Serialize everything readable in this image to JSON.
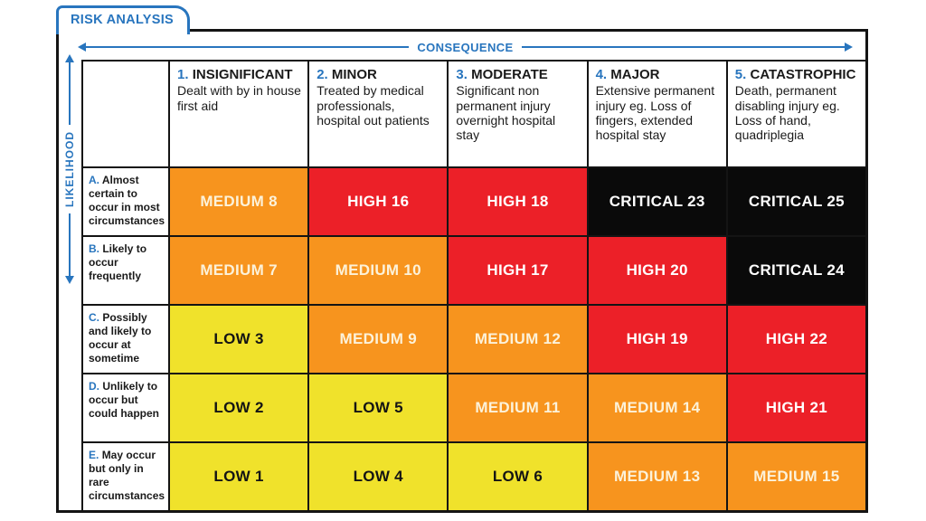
{
  "tab": {
    "label": "RISK ANALYSIS"
  },
  "axes": {
    "horizontal": "CONSEQUENCE",
    "vertical": "LIKELIHOOD"
  },
  "colors": {
    "accent_blue": "#2875BE",
    "low": "#F0E22B",
    "medium": "#F7941E",
    "high": "#EC2028",
    "critical": "#0A0A0A"
  },
  "matrix": {
    "columns": [
      {
        "num": "1.",
        "title": "INSIGNIFICANT",
        "desc": "Dealt with by in house first aid"
      },
      {
        "num": "2.",
        "title": "MINOR",
        "desc": "Treated by medical professionals, hospital out patients"
      },
      {
        "num": "3.",
        "title": "MODERATE",
        "desc": "Significant non permanent injury overnight hospital stay"
      },
      {
        "num": "4.",
        "title": "MAJOR",
        "desc": "Extensive permanent injury eg. Loss of fingers, extended hospital stay"
      },
      {
        "num": "5.",
        "title": "CATASTROPHIC",
        "desc": "Death, permanent disabling injury eg. Loss of hand, quadriplegia"
      }
    ],
    "rows": [
      {
        "letter": "A.",
        "desc": "Almost certain to occur in most circumstances",
        "cells": [
          {
            "label": "MEDIUM 8",
            "level": "medium"
          },
          {
            "label": "HIGH 16",
            "level": "high"
          },
          {
            "label": "HIGH 18",
            "level": "high"
          },
          {
            "label": "CRITICAL 23",
            "level": "critical"
          },
          {
            "label": "CRITICAL 25",
            "level": "critical"
          }
        ]
      },
      {
        "letter": "B.",
        "desc": "Likely to occur frequently",
        "cells": [
          {
            "label": "MEDIUM 7",
            "level": "medium"
          },
          {
            "label": "MEDIUM 10",
            "level": "medium"
          },
          {
            "label": "HIGH 17",
            "level": "high"
          },
          {
            "label": "HIGH 20",
            "level": "high"
          },
          {
            "label": "CRITICAL 24",
            "level": "critical"
          }
        ]
      },
      {
        "letter": "C.",
        "desc": "Possibly and likely to occur at sometime",
        "cells": [
          {
            "label": "LOW 3",
            "level": "low"
          },
          {
            "label": "MEDIUM 9",
            "level": "medium"
          },
          {
            "label": "MEDIUM 12",
            "level": "medium"
          },
          {
            "label": "HIGH 19",
            "level": "high"
          },
          {
            "label": "HIGH 22",
            "level": "high"
          }
        ]
      },
      {
        "letter": "D.",
        "desc": "Unlikely to occur but could happen",
        "cells": [
          {
            "label": "LOW 2",
            "level": "low"
          },
          {
            "label": "LOW 5",
            "level": "low"
          },
          {
            "label": "MEDIUM 11",
            "level": "medium"
          },
          {
            "label": "MEDIUM 14",
            "level": "medium"
          },
          {
            "label": "HIGH 21",
            "level": "high"
          }
        ]
      },
      {
        "letter": "E.",
        "desc": "May occur but only in rare circumstances",
        "cells": [
          {
            "label": "LOW 1",
            "level": "low"
          },
          {
            "label": "LOW 4",
            "level": "low"
          },
          {
            "label": "LOW 6",
            "level": "low"
          },
          {
            "label": "MEDIUM 13",
            "level": "medium"
          },
          {
            "label": "MEDIUM 15",
            "level": "medium"
          }
        ]
      }
    ]
  }
}
